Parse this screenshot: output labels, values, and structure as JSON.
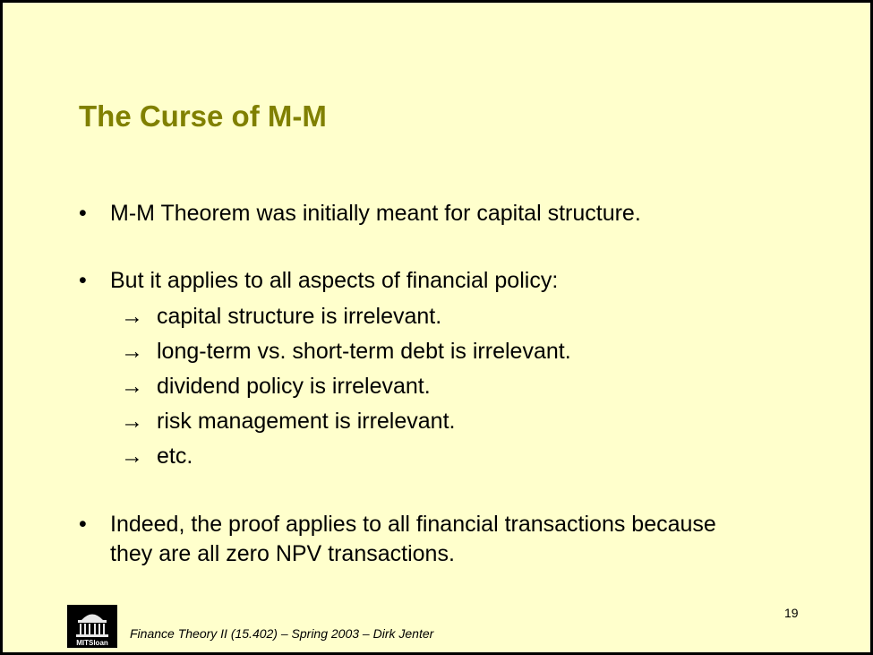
{
  "slide": {
    "title": "The Curse of M-M",
    "bullets": [
      {
        "marker": "•",
        "text": "M-M Theorem was initially meant for capital structure."
      },
      {
        "marker": "•",
        "text": "But it applies to all aspects of financial policy:"
      },
      {
        "marker": "•",
        "line1": "Indeed, the proof applies to all financial transactions because",
        "line2": "they are all zero NPV transactions."
      }
    ],
    "sub_items": [
      {
        "arrow": "→",
        "text": "capital structure is irrelevant."
      },
      {
        "arrow": "→",
        "text": "long-term vs. short-term debt is irrelevant."
      },
      {
        "arrow": "→",
        "text": "dividend policy is irrelevant."
      },
      {
        "arrow": "→",
        "text": "risk management is irrelevant."
      },
      {
        "arrow": "→",
        "text": "etc."
      }
    ],
    "footer": "Finance Theory II (15.402) – Spring 2003 – Dirk Jenter",
    "page_number": "19",
    "logo": {
      "text": "MITSloan"
    }
  },
  "colors": {
    "background": "#ffffcc",
    "title": "#808000",
    "text": "#000000"
  }
}
